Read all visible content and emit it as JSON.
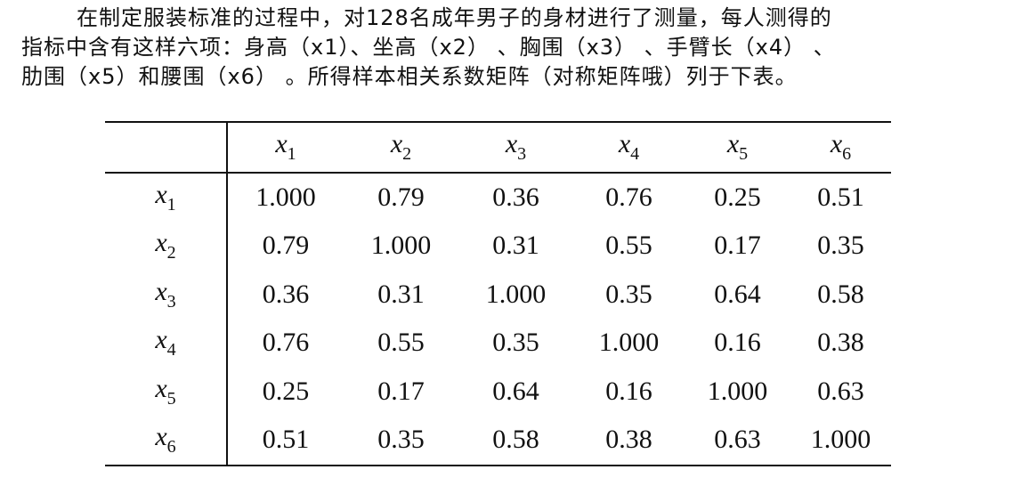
{
  "paragraph": {
    "lines": [
      "在制定服装标准的过程中，对128名成年男子的身材进行了测量，每人测得的",
      "指标中含有这样六项：身高（x1）、坐高（x2） 、胸围（x3） 、手臂长（x4） 、",
      "肋围（x5）和腰围（x6） 。所得样本相关系数矩阵（对称矩阵哦）列于下表。"
    ]
  },
  "table": {
    "columns": [
      {
        "symbol": "x",
        "subscript": "1"
      },
      {
        "symbol": "x",
        "subscript": "2"
      },
      {
        "symbol": "x",
        "subscript": "3"
      },
      {
        "symbol": "x",
        "subscript": "4"
      },
      {
        "symbol": "x",
        "subscript": "5"
      },
      {
        "symbol": "x",
        "subscript": "6"
      }
    ],
    "rows": [
      {
        "label": {
          "symbol": "x",
          "subscript": "1"
        },
        "values": [
          "1.000",
          "0.79",
          "0.36",
          "0.76",
          "0.25",
          "0.51"
        ]
      },
      {
        "label": {
          "symbol": "x",
          "subscript": "2"
        },
        "values": [
          "0.79",
          "1.000",
          "0.31",
          "0.55",
          "0.17",
          "0.35"
        ]
      },
      {
        "label": {
          "symbol": "x",
          "subscript": "3"
        },
        "values": [
          "0.36",
          "0.31",
          "1.000",
          "0.35",
          "0.64",
          "0.58"
        ]
      },
      {
        "label": {
          "symbol": "x",
          "subscript": "4"
        },
        "values": [
          "0.76",
          "0.55",
          "0.35",
          "1.000",
          "0.16",
          "0.38"
        ]
      },
      {
        "label": {
          "symbol": "x",
          "subscript": "5"
        },
        "values": [
          "0.25",
          "0.17",
          "0.64",
          "0.16",
          "1.000",
          "0.63"
        ]
      },
      {
        "label": {
          "symbol": "x",
          "subscript": "6"
        },
        "values": [
          "0.51",
          "0.35",
          "0.58",
          "0.38",
          "0.63",
          "1.000"
        ]
      }
    ]
  }
}
